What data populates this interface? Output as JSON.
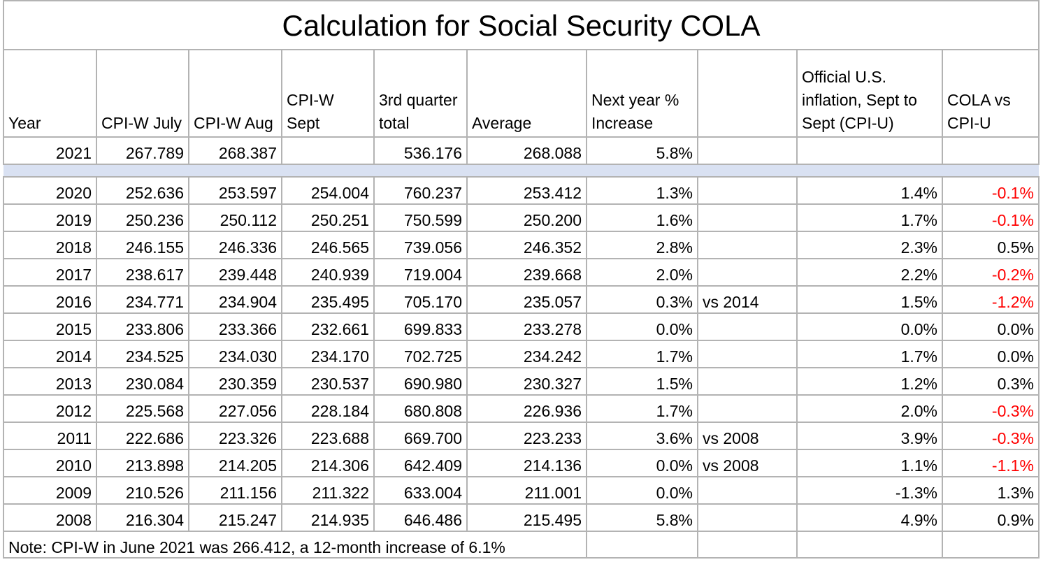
{
  "title": "Calculation for Social Security COLA",
  "headers": [
    "Year",
    "CPI-W July",
    "CPI-W Aug",
    "CPI-W Sept",
    "3rd quarter total",
    "Average",
    "Next year % Increase",
    "",
    "Official U.S. inflation, Sept to Sept (CPI-U)",
    "COLA vs CPI-U"
  ],
  "current_row": [
    "2021",
    "267.789",
    "268.387",
    "",
    "536.176",
    "268.088",
    "5.8%",
    "",
    "",
    ""
  ],
  "rows": [
    [
      "2020",
      "252.636",
      "253.597",
      "254.004",
      "760.237",
      "253.412",
      "1.3%",
      "",
      "1.4%",
      "-0.1%"
    ],
    [
      "2019",
      "250.236",
      "250.112",
      "250.251",
      "750.599",
      "250.200",
      "1.6%",
      "",
      "1.7%",
      "-0.1%"
    ],
    [
      "2018",
      "246.155",
      "246.336",
      "246.565",
      "739.056",
      "246.352",
      "2.8%",
      "",
      "2.3%",
      "0.5%"
    ],
    [
      "2017",
      "238.617",
      "239.448",
      "240.939",
      "719.004",
      "239.668",
      "2.0%",
      "",
      "2.2%",
      "-0.2%"
    ],
    [
      "2016",
      "234.771",
      "234.904",
      "235.495",
      "705.170",
      "235.057",
      "0.3%",
      "vs 2014",
      "1.5%",
      "-1.2%"
    ],
    [
      "2015",
      "233.806",
      "233.366",
      "232.661",
      "699.833",
      "233.278",
      "0.0%",
      "",
      "0.0%",
      "0.0%"
    ],
    [
      "2014",
      "234.525",
      "234.030",
      "234.170",
      "702.725",
      "234.242",
      "1.7%",
      "",
      "1.7%",
      "0.0%"
    ],
    [
      "2013",
      "230.084",
      "230.359",
      "230.537",
      "690.980",
      "230.327",
      "1.5%",
      "",
      "1.2%",
      "0.3%"
    ],
    [
      "2012",
      "225.568",
      "227.056",
      "228.184",
      "680.808",
      "226.936",
      "1.7%",
      "",
      "2.0%",
      "-0.3%"
    ],
    [
      "2011",
      "222.686",
      "223.326",
      "223.688",
      "669.700",
      "223.233",
      "3.6%",
      "vs 2008",
      "3.9%",
      "-0.3%"
    ],
    [
      "2010",
      "213.898",
      "214.205",
      "214.306",
      "642.409",
      "214.136",
      "0.0%",
      "vs 2008",
      "1.1%",
      "-1.1%"
    ],
    [
      "2009",
      "210.526",
      "211.156",
      "211.322",
      "633.004",
      "211.001",
      "0.0%",
      "",
      "-1.3%",
      "1.3%"
    ],
    [
      "2008",
      "216.304",
      "215.247",
      "214.935",
      "646.486",
      "215.495",
      "5.8%",
      "",
      "4.9%",
      "0.9%"
    ]
  ],
  "note": "Note: CPI-W in June 2021 was 266.412, a 12-month increase of 6.1%",
  "colors": {
    "negative": "#ff0000",
    "band": "#d9e1f2",
    "grid": "#b3b3b3"
  }
}
